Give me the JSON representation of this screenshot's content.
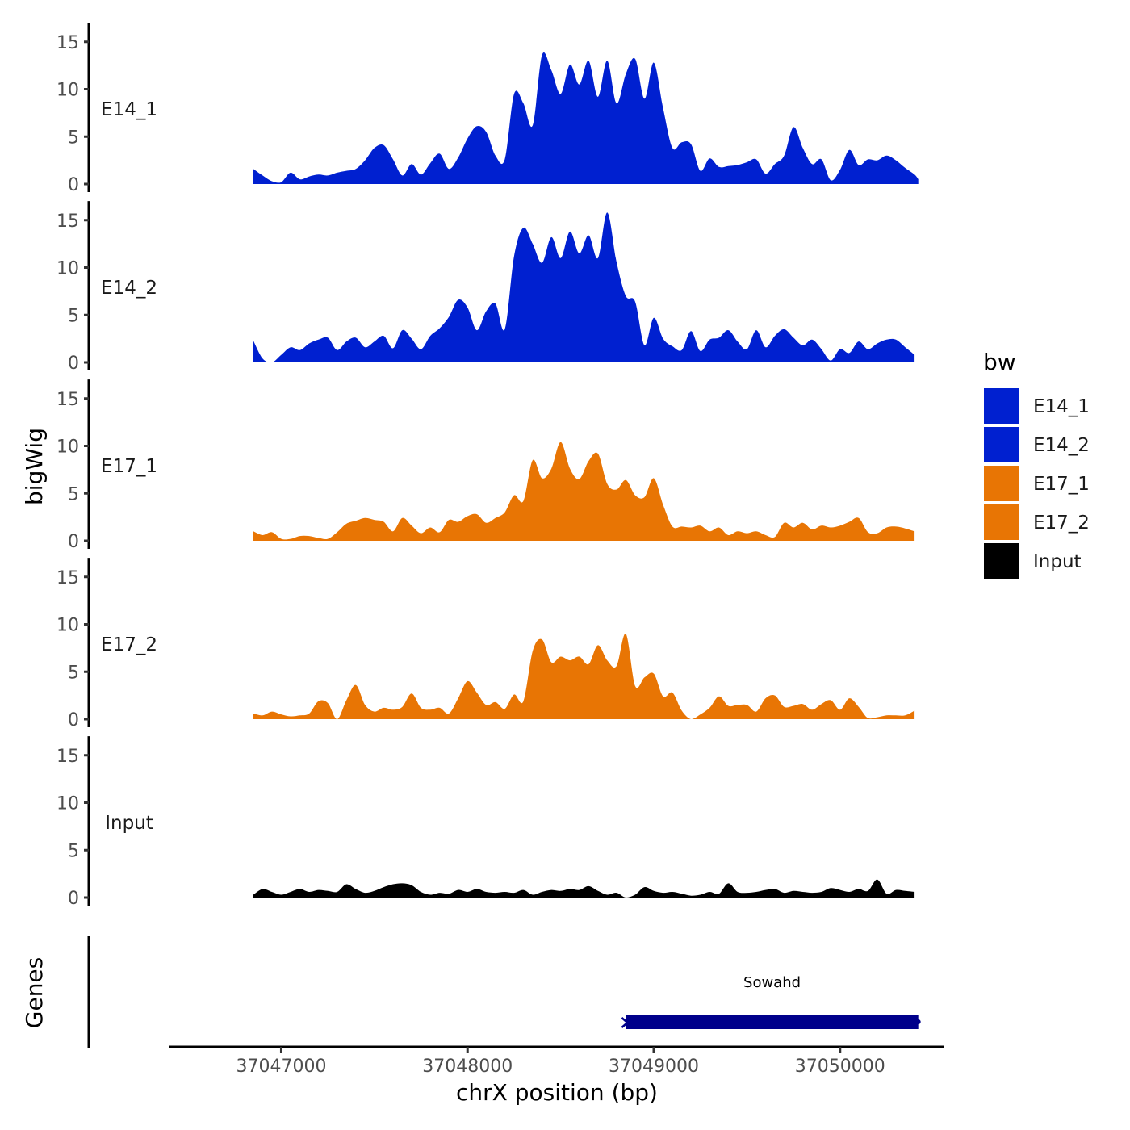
{
  "chart_data": {
    "type": "area",
    "xlabel": "chrX position (bp)",
    "ylabel": "bigWig",
    "gene_track_label": "Genes",
    "xlim": [
      37046400,
      37050560
    ],
    "x_ticks": [
      37047000,
      37048000,
      37049000,
      37050000
    ],
    "x_tick_labels": [
      "37047000",
      "37048000",
      "37049000",
      "37050000"
    ],
    "ylim": [
      0,
      16.5
    ],
    "y_ticks": [
      0,
      5,
      10,
      15
    ],
    "y_tick_labels": [
      "0",
      "5",
      "10",
      "15"
    ],
    "legend": {
      "title": "bw",
      "position": "right",
      "entries": [
        {
          "name": "E14_1",
          "color": "#0020D0"
        },
        {
          "name": "E14_2",
          "color": "#0020D0"
        },
        {
          "name": "E17_1",
          "color": "#E87504"
        },
        {
          "name": "E17_2",
          "color": "#E87504"
        },
        {
          "name": "Input",
          "color": "#000000"
        }
      ]
    },
    "series": [
      {
        "name": "E14_1",
        "color": "#0020D0",
        "x": [
          37046850,
          37046900,
          37046950,
          37047000,
          37047050,
          37047100,
          37047150,
          37047200,
          37047250,
          37047300,
          37047350,
          37047400,
          37047450,
          37047500,
          37047550,
          37047600,
          37047650,
          37047700,
          37047750,
          37047800,
          37047850,
          37047900,
          37047950,
          37048000,
          37048050,
          37048100,
          37048150,
          37048200,
          37048250,
          37048300,
          37048350,
          37048400,
          37048450,
          37048500,
          37048550,
          37048600,
          37048650,
          37048700,
          37048750,
          37048800,
          37048850,
          37048900,
          37048950,
          37049000,
          37049050,
          37049100,
          37049150,
          37049200,
          37049250,
          37049300,
          37049350,
          37049400,
          37049450,
          37049500,
          37049550,
          37049600,
          37049650,
          37049700,
          37049750,
          37049800,
          37049850,
          37049900,
          37049950,
          37050000,
          37050050,
          37050100,
          37050150,
          37050200,
          37050250,
          37050300,
          37050350,
          37050400,
          37050420
        ],
        "values": [
          1.6,
          0.9,
          0.3,
          0.2,
          1.2,
          0.5,
          0.8,
          1.0,
          0.9,
          1.2,
          1.4,
          1.6,
          2.5,
          3.8,
          4.1,
          2.6,
          0.9,
          2.1,
          1.0,
          2.2,
          3.2,
          1.6,
          2.8,
          4.8,
          6.1,
          5.5,
          3.0,
          2.6,
          9.5,
          8.5,
          6.2,
          13.6,
          12.0,
          9.5,
          12.6,
          10.5,
          13.0,
          9.2,
          13.0,
          8.5,
          11.6,
          13.2,
          9.0,
          12.8,
          8.0,
          3.8,
          4.4,
          4.2,
          1.4,
          2.7,
          1.8,
          1.9,
          2.0,
          2.3,
          2.6,
          1.1,
          2.1,
          3.0,
          6.0,
          3.8,
          2.1,
          2.6,
          0.4,
          1.5,
          3.6,
          2.0,
          2.6,
          2.5,
          3.0,
          2.5,
          1.7,
          1.0,
          0.5
        ]
      },
      {
        "name": "E14_2",
        "color": "#0020D0",
        "x": [
          37046850,
          37046900,
          37046950,
          37047000,
          37047050,
          37047100,
          37047150,
          37047200,
          37047250,
          37047300,
          37047350,
          37047400,
          37047450,
          37047500,
          37047550,
          37047600,
          37047650,
          37047700,
          37047750,
          37047800,
          37047850,
          37047900,
          37047950,
          37048000,
          37048050,
          37048100,
          37048150,
          37048200,
          37048250,
          37048300,
          37048350,
          37048400,
          37048450,
          37048500,
          37048550,
          37048600,
          37048650,
          37048700,
          37048750,
          37048800,
          37048850,
          37048900,
          37048950,
          37049000,
          37049050,
          37049100,
          37049150,
          37049200,
          37049250,
          37049300,
          37049350,
          37049400,
          37049450,
          37049500,
          37049550,
          37049600,
          37049650,
          37049700,
          37049750,
          37049800,
          37049850,
          37049900,
          37049950,
          37050000,
          37050050,
          37050100,
          37050150,
          37050200,
          37050250,
          37050300,
          37050350,
          37050400
        ],
        "values": [
          2.3,
          0.4,
          0.0,
          0.8,
          1.6,
          1.3,
          2.0,
          2.4,
          2.6,
          1.3,
          2.2,
          2.6,
          1.6,
          2.2,
          2.8,
          1.5,
          3.4,
          2.5,
          1.4,
          2.8,
          3.6,
          4.8,
          6.6,
          5.8,
          3.4,
          5.4,
          6.2,
          3.5,
          11.2,
          14.2,
          12.5,
          10.5,
          13.2,
          11.0,
          13.8,
          11.5,
          13.4,
          11.0,
          15.8,
          10.6,
          7.0,
          6.4,
          1.8,
          4.7,
          2.5,
          1.7,
          1.3,
          3.3,
          1.2,
          2.4,
          2.6,
          3.4,
          2.2,
          1.4,
          3.4,
          1.6,
          2.8,
          3.5,
          2.6,
          1.8,
          2.4,
          1.4,
          0.2,
          1.4,
          1.0,
          2.2,
          1.4,
          2.0,
          2.4,
          2.4,
          1.6,
          0.8
        ]
      },
      {
        "name": "E17_1",
        "color": "#E87504",
        "x": [
          37046850,
          37046900,
          37046950,
          37047000,
          37047050,
          37047100,
          37047150,
          37047200,
          37047250,
          37047300,
          37047350,
          37047400,
          37047450,
          37047500,
          37047550,
          37047600,
          37047650,
          37047700,
          37047750,
          37047800,
          37047850,
          37047900,
          37047950,
          37048000,
          37048050,
          37048100,
          37048150,
          37048200,
          37048250,
          37048300,
          37048350,
          37048400,
          37048450,
          37048500,
          37048550,
          37048600,
          37048650,
          37048700,
          37048750,
          37048800,
          37048850,
          37048900,
          37048950,
          37049000,
          37049050,
          37049100,
          37049150,
          37049200,
          37049250,
          37049300,
          37049350,
          37049400,
          37049450,
          37049500,
          37049550,
          37049600,
          37049650,
          37049700,
          37049750,
          37049800,
          37049850,
          37049900,
          37049950,
          37050000,
          37050050,
          37050100,
          37050150,
          37050200,
          37050250,
          37050300,
          37050350,
          37050400
        ],
        "values": [
          1.0,
          0.6,
          0.9,
          0.2,
          0.2,
          0.5,
          0.5,
          0.3,
          0.2,
          0.9,
          1.8,
          2.1,
          2.4,
          2.2,
          2.0,
          1.0,
          2.4,
          1.6,
          0.8,
          1.4,
          0.9,
          2.2,
          2.0,
          2.6,
          2.8,
          1.9,
          2.4,
          3.0,
          4.8,
          4.2,
          8.5,
          6.6,
          7.6,
          10.4,
          7.6,
          6.5,
          8.4,
          9.2,
          6.0,
          5.4,
          6.4,
          4.8,
          4.6,
          6.6,
          3.8,
          1.5,
          1.5,
          1.4,
          1.6,
          1.0,
          1.4,
          0.6,
          1.0,
          0.8,
          1.0,
          0.6,
          0.4,
          1.9,
          1.4,
          1.9,
          1.2,
          1.6,
          1.4,
          1.6,
          2.0,
          2.4,
          0.9,
          0.8,
          1.4,
          1.5,
          1.3,
          1.0
        ]
      },
      {
        "name": "E17_2",
        "color": "#E87504",
        "x": [
          37046850,
          37046900,
          37046950,
          37047000,
          37047050,
          37047100,
          37047150,
          37047200,
          37047250,
          37047300,
          37047350,
          37047400,
          37047450,
          37047500,
          37047550,
          37047600,
          37047650,
          37047700,
          37047750,
          37047800,
          37047850,
          37047900,
          37047950,
          37048000,
          37048050,
          37048100,
          37048150,
          37048200,
          37048250,
          37048300,
          37048350,
          37048400,
          37048450,
          37048500,
          37048550,
          37048600,
          37048650,
          37048700,
          37048750,
          37048800,
          37048850,
          37048900,
          37048950,
          37049000,
          37049050,
          37049100,
          37049150,
          37049200,
          37049250,
          37049300,
          37049350,
          37049400,
          37049450,
          37049500,
          37049550,
          37049600,
          37049650,
          37049700,
          37049750,
          37049800,
          37049850,
          37049900,
          37049950,
          37050000,
          37050050,
          37050100,
          37050150,
          37050200,
          37050250,
          37050300,
          37050350,
          37050400
        ],
        "values": [
          0.6,
          0.4,
          0.8,
          0.5,
          0.3,
          0.4,
          0.6,
          1.9,
          1.7,
          0.0,
          2.0,
          3.6,
          1.5,
          0.8,
          1.2,
          1.0,
          1.3,
          2.7,
          1.2,
          1.0,
          1.2,
          0.6,
          2.2,
          4.0,
          2.8,
          1.5,
          1.8,
          1.1,
          2.6,
          1.9,
          7.2,
          8.4,
          6.0,
          6.6,
          6.2,
          6.6,
          5.8,
          7.8,
          6.2,
          5.6,
          9.0,
          3.5,
          4.4,
          4.8,
          2.4,
          2.8,
          0.9,
          0.0,
          0.5,
          1.2,
          2.4,
          1.4,
          1.5,
          1.5,
          0.8,
          2.2,
          2.5,
          1.3,
          1.4,
          1.6,
          1.0,
          1.6,
          2.0,
          1.0,
          2.2,
          1.3,
          0.1,
          0.2,
          0.4,
          0.4,
          0.4,
          0.9
        ]
      },
      {
        "name": "Input",
        "color": "#000000",
        "x": [
          37046850,
          37046900,
          37046950,
          37047000,
          37047050,
          37047100,
          37047150,
          37047200,
          37047250,
          37047300,
          37047350,
          37047400,
          37047450,
          37047500,
          37047550,
          37047600,
          37047650,
          37047700,
          37047750,
          37047800,
          37047850,
          37047900,
          37047950,
          37048000,
          37048050,
          37048100,
          37048150,
          37048200,
          37048250,
          37048300,
          37048350,
          37048400,
          37048450,
          37048500,
          37048550,
          37048600,
          37048650,
          37048700,
          37048750,
          37048800,
          37048850,
          37048900,
          37048950,
          37049000,
          37049050,
          37049100,
          37049150,
          37049200,
          37049250,
          37049300,
          37049350,
          37049400,
          37049450,
          37049500,
          37049550,
          37049600,
          37049650,
          37049700,
          37049750,
          37049800,
          37049850,
          37049900,
          37049950,
          37050000,
          37050050,
          37050100,
          37050150,
          37050200,
          37050250,
          37050300,
          37050350,
          37050400
        ],
        "values": [
          0.3,
          0.9,
          0.6,
          0.3,
          0.6,
          0.9,
          0.6,
          0.8,
          0.7,
          0.6,
          1.4,
          0.9,
          0.5,
          0.7,
          1.1,
          1.4,
          1.5,
          1.3,
          0.6,
          0.3,
          0.5,
          0.4,
          0.8,
          0.6,
          0.9,
          0.6,
          0.5,
          0.6,
          0.5,
          0.8,
          0.3,
          0.6,
          0.8,
          0.7,
          0.9,
          0.8,
          1.2,
          0.7,
          0.3,
          0.5,
          0.0,
          0.3,
          1.1,
          0.7,
          0.5,
          0.6,
          0.4,
          0.2,
          0.3,
          0.6,
          0.4,
          1.5,
          0.6,
          0.5,
          0.6,
          0.8,
          0.9,
          0.5,
          0.7,
          0.6,
          0.5,
          0.6,
          1.0,
          0.8,
          0.6,
          0.9,
          0.7,
          1.9,
          0.4,
          0.8,
          0.7,
          0.6
        ]
      }
    ],
    "genes": [
      {
        "name": "Sowahd",
        "start": 37048850,
        "end": 37050420,
        "color": "#00008B"
      }
    ]
  }
}
